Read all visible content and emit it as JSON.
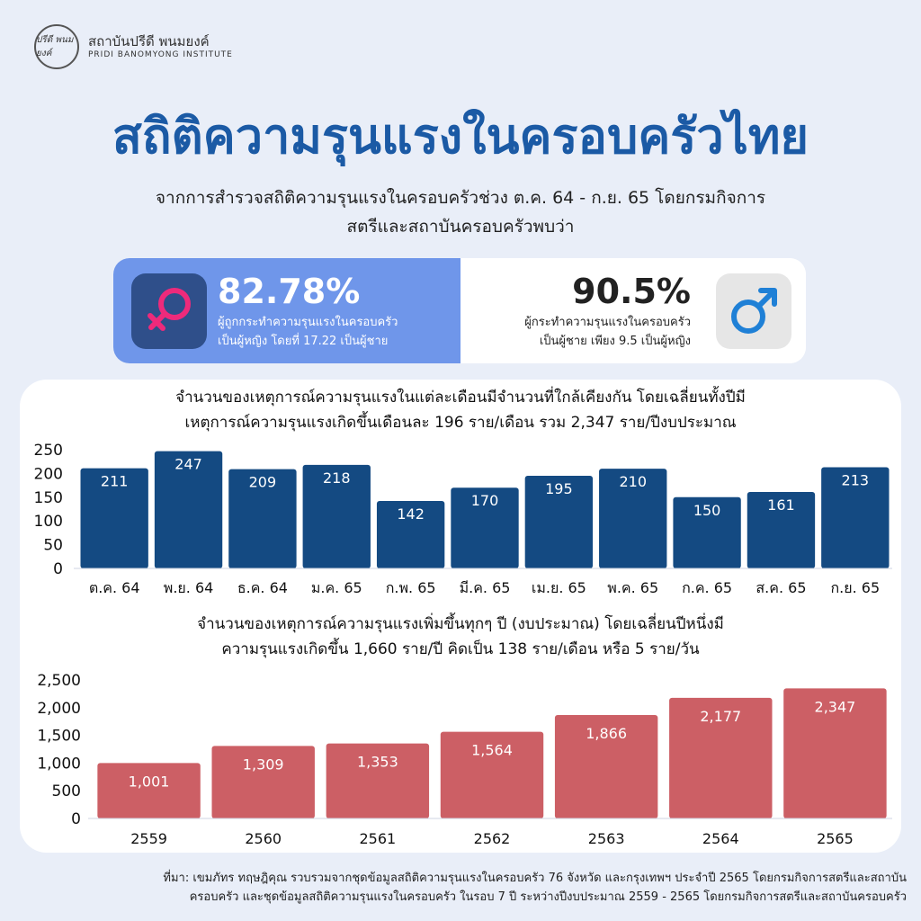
{
  "header": {
    "org_th": "สถาบันปรีดี พนมยงค์",
    "org_en": "PRIDI BANOMYONG INSTITUTE",
    "logo_text": "ปรีดี พนมยงค์"
  },
  "title": "สถิติความรุนแรงในครอบครัวไทย",
  "subtitle": {
    "line1": "จากการสำรวจสถิติความรุนแรงในครอบครัวช่วง ต.ค. 64 - ก.ย. 65 โดยกรมกิจการ",
    "line2": "สตรีและสถาบันครอบครัวพบว่า"
  },
  "stats": {
    "female": {
      "percent": "82.78%",
      "line1": "ผู้ถูกกระทำความรุนแรงในครอบครัว",
      "line2": "เป็นผู้หญิง โดยที่ 17.22 เป็นผู้ชาย",
      "icon": "female-symbol-icon"
    },
    "male": {
      "percent": "90.5%",
      "line1": "ผู้กระทำความรุนแรงในครอบครัว",
      "line2": "เป็นผู้ชาย เพียง 9.5 เป็นผู้หญิง",
      "icon": "male-symbol-icon"
    }
  },
  "colors": {
    "title": "#1b5aa5",
    "bar_monthly": "#144a82",
    "bar_yearly": "#cc5f65",
    "female_panel": "#6f96ea"
  },
  "chart_data": [
    {
      "type": "bar",
      "title_line1": "จำนวนของเหตุการณ์ความรุนแรงในแต่ละเดือนมีจำนวนที่ใกล้เคียงกัน โดยเฉลี่ยนทั้งปีมี",
      "title_line2": "เหตุการณ์ความรุนแรงเกิดขึ้นเดือนละ 196 ราย/เดือน รวม 2,347 ราย/ปีงบประมาณ",
      "categories": [
        "ต.ค. 64",
        "พ.ย. 64",
        "ธ.ค. 64",
        "ม.ค. 65",
        "ก.พ. 65",
        "มี.ค. 65",
        "เม.ย. 65",
        "พ.ค. 65",
        "ก.ค. 65",
        "ส.ค. 65",
        "ก.ย. 65"
      ],
      "values": [
        211,
        247,
        209,
        218,
        142,
        170,
        195,
        210,
        150,
        161,
        213
      ],
      "value_labels": [
        "211",
        "247",
        "209",
        "218",
        "142",
        "170",
        "195",
        "210",
        "150",
        "161",
        "213"
      ],
      "yticks": [
        "0",
        "50",
        "100",
        "150",
        "200",
        "250"
      ],
      "ylim": [
        0,
        250
      ]
    },
    {
      "type": "bar",
      "title_line1": "จำนวนของเหตุการณ์ความรุนแรงเพิ่มขึ้นทุกๆ ปี (งบประมาณ) โดยเฉลี่ยนปีหนึ่งมี",
      "title_line2": "ความรุนแรงเกิดขึ้น 1,660 ราย/ปี คิดเป็น 138 ราย/เดือน หรือ 5 ราย/วัน",
      "categories": [
        "2559",
        "2560",
        "2561",
        "2562",
        "2563",
        "2564",
        "2565"
      ],
      "values": [
        1001,
        1309,
        1353,
        1564,
        1866,
        2177,
        2347
      ],
      "value_labels": [
        "1,001",
        "1,309",
        "1,353",
        "1,564",
        "1,866",
        "2,177",
        "2,347"
      ],
      "yticks": [
        "0",
        "500",
        "1,000",
        "1,500",
        "2,000",
        "2,500"
      ],
      "ylim": [
        0,
        2500
      ]
    }
  ],
  "footer": {
    "line1": "ที่มา: เขมภัทร ทฤษฎิคุณ รวบรวมจากชุดข้อมูลสถิติความรุนแรงในครอบครัว 76 จังหวัด และกรุงเทพฯ ประจำปี 2565 โดยกรมกิจการสตรีและสถาบัน",
    "line2": "ครอบครัว และชุดข้อมูลสถิติความรุนแรงในครอบครัว ในรอบ 7 ปี ระหว่างปีงบประมาณ 2559 - 2565 โดยกรมกิจการสตรีและสถาบันครอบครัว"
  }
}
